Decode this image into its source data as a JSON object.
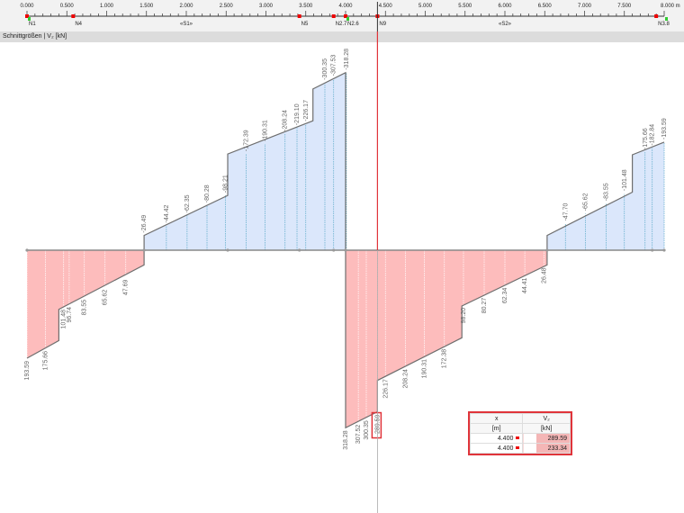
{
  "ruler": {
    "unit": "m",
    "ticks": [
      "0.000",
      "0.500",
      "1.000",
      "1.500",
      "2.000",
      "2.500",
      "3.000",
      "3.500",
      "4.000",
      "4.500",
      "5.000",
      "5.500",
      "6.000",
      "6.500",
      "7.000",
      "7.500",
      "8.000 m"
    ],
    "nodes": [
      {
        "label": "N1",
        "x": 0.0
      },
      {
        "label": "N4",
        "x": 0.58
      },
      {
        "label": "N5",
        "x": 3.42
      },
      {
        "label": "N2.7",
        "x": 3.85
      },
      {
        "label": "N2.6",
        "x": 4.0
      },
      {
        "label": "N9",
        "x": 4.4
      },
      {
        "label": "N3.8",
        "x": 7.9
      }
    ],
    "members": [
      {
        "label": "«S1»",
        "x": 2.0
      },
      {
        "label": "«S2»",
        "x": 6.0
      }
    ],
    "cursor_x": 4.4
  },
  "title": "Schnittgrößen | V₂ [kN]",
  "colors": {
    "negative_fill": "#dbe7fb",
    "positive_fill": "#fdbcbc",
    "outline": "#6e6e6e",
    "cursor": "#e0343a"
  },
  "chart_data": {
    "type": "area",
    "xlabel": "m",
    "xlim": [
      0,
      8
    ],
    "quantity": "V₂ [kN]",
    "points": [
      [
        0,
        193.59
      ],
      [
        0.4,
        162
      ],
      [
        0.4,
        106
      ],
      [
        1.47,
        26.49
      ],
      [
        1.47,
        -26.49
      ],
      [
        2.52,
        -98.21
      ],
      [
        2.52,
        -172.39
      ],
      [
        3.59,
        -232
      ],
      [
        3.59,
        -289
      ],
      [
        4.0,
        -318.28
      ],
      [
        4.0,
        318.28
      ],
      [
        4.4,
        289.59
      ],
      [
        4.4,
        233.34
      ],
      [
        5.46,
        157
      ],
      [
        5.46,
        100
      ],
      [
        6.53,
        26.48
      ],
      [
        6.53,
        -26.48
      ],
      [
        7.6,
        -104
      ],
      [
        7.6,
        -171
      ],
      [
        8.0,
        -193.59
      ]
    ],
    "labels": [
      {
        "x": 1.47,
        "v": "-26.49"
      },
      {
        "x": 1.75,
        "v": "-44.42"
      },
      {
        "x": 2.01,
        "v": "-62.35"
      },
      {
        "x": 2.26,
        "v": "-80.28"
      },
      {
        "x": 2.49,
        "v": "-98.21"
      },
      {
        "x": 2.75,
        "v": "-172.39"
      },
      {
        "x": 2.99,
        "v": "-190.31"
      },
      {
        "x": 3.24,
        "v": "-208.24"
      },
      {
        "x": 3.39,
        "v": "-219.10"
      },
      {
        "x": 3.5,
        "v": "-226.17"
      },
      {
        "x": 3.74,
        "v": "-300.35"
      },
      {
        "x": 3.85,
        "v": "-307.53"
      },
      {
        "x": 4.01,
        "v": "-318.28"
      },
      {
        "x": 6.76,
        "v": "-47.70"
      },
      {
        "x": 7.01,
        "v": "-65.62"
      },
      {
        "x": 7.27,
        "v": "-83.55"
      },
      {
        "x": 7.5,
        "v": "-101.48"
      },
      {
        "x": 7.76,
        "v": "-175.66"
      },
      {
        "x": 7.85,
        "v": "-182.84"
      },
      {
        "x": 8.0,
        "v": "-193.59"
      },
      {
        "x": 0.0,
        "v": "193.59"
      },
      {
        "x": 0.23,
        "v": "175.66"
      },
      {
        "x": 0.46,
        "v": "101.48"
      },
      {
        "x": 0.53,
        "v": "96.74"
      },
      {
        "x": 0.72,
        "v": "83.55"
      },
      {
        "x": 0.98,
        "v": "65.62"
      },
      {
        "x": 1.24,
        "v": "47.69"
      },
      {
        "x": 4.0,
        "v": "318.28"
      },
      {
        "x": 4.16,
        "v": "307.52"
      },
      {
        "x": 4.26,
        "v": "300.35"
      },
      {
        "x": 4.4,
        "v": "289.59",
        "highlight": true
      },
      {
        "x": 4.5,
        "v": "226.17"
      },
      {
        "x": 4.75,
        "v": "208.24"
      },
      {
        "x": 4.99,
        "v": "190.31"
      },
      {
        "x": 5.24,
        "v": "172.38"
      },
      {
        "x": 5.48,
        "v": "98.20"
      },
      {
        "x": 5.74,
        "v": "80.27"
      },
      {
        "x": 6.0,
        "v": "62.34"
      },
      {
        "x": 6.25,
        "v": "44.41"
      },
      {
        "x": 6.49,
        "v": "26.48"
      }
    ]
  },
  "table": {
    "headers": [
      "x",
      "V₂"
    ],
    "units": [
      "[m]",
      "[kN]"
    ],
    "rows": [
      [
        "4.400",
        "289.59"
      ],
      [
        "4.400",
        "233.34"
      ]
    ]
  }
}
